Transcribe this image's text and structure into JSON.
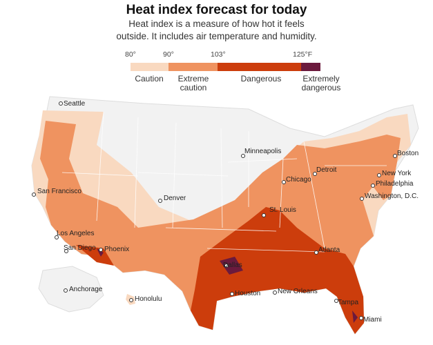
{
  "title": "Heat index forecast for today",
  "subtitle": "Heat index is a measure of how hot it feels outside. It includes air temperature and humidity.",
  "legend": {
    "ticks": [
      "80°",
      "90°",
      "103°",
      "125°F"
    ],
    "categories": [
      {
        "label": "Caution",
        "color": "#f9d9c0"
      },
      {
        "label": "Extreme caution",
        "color": "#ef9360"
      },
      {
        "label": "Dangerous",
        "color": "#cc3d0c"
      },
      {
        "label": "Extremely dangerous",
        "color": "#6b1a3d"
      }
    ]
  },
  "cities": [
    {
      "name": "Seattle"
    },
    {
      "name": "San Francisco"
    },
    {
      "name": "Los Angeles"
    },
    {
      "name": "San Diego"
    },
    {
      "name": "Phoenix"
    },
    {
      "name": "Denver"
    },
    {
      "name": "Minneapolis"
    },
    {
      "name": "Chicago"
    },
    {
      "name": "Detroit"
    },
    {
      "name": "St. Louis"
    },
    {
      "name": "Dallas"
    },
    {
      "name": "Houston"
    },
    {
      "name": "New Orleans"
    },
    {
      "name": "Atlanta"
    },
    {
      "name": "Tampa"
    },
    {
      "name": "Miami"
    },
    {
      "name": "Boston"
    },
    {
      "name": "New York"
    },
    {
      "name": "Philadelphia"
    },
    {
      "name": "Washington, D.C."
    },
    {
      "name": "Anchorage"
    },
    {
      "name": "Honolulu"
    }
  ],
  "colors": {
    "land_no_alert": "#f2f2f2",
    "state_borders": "#ffffff"
  }
}
